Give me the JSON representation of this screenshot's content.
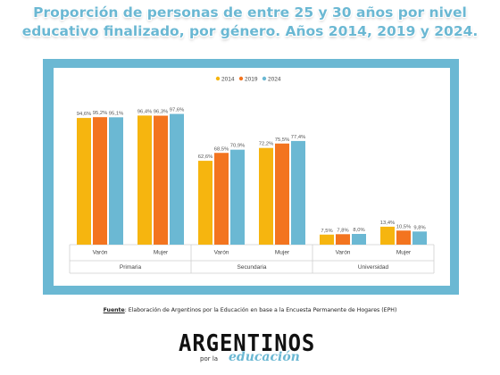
{
  "title_line1": "Proporción de personas de entre 25 y 30 años por nivel",
  "title_line2": "educativo finalizado, por género. Años 2014, 2019 y 2024.",
  "source": {
    "label": "Fuente",
    "text": ": Elaboración de Argentinos por la Educación en base a la Encuesta Permanente de Hogares (EPH)"
  },
  "logo": {
    "main": "ARGENTINOS",
    "por": "por la",
    "edu": "educación"
  },
  "colors": {
    "frame": "#6bb8d3",
    "s2014": "#f6b50f",
    "s2019": "#f3741f",
    "s2024": "#6bb8d3"
  },
  "chart_data": {
    "type": "bar",
    "groups": [
      {
        "name": "Primaria",
        "categories": [
          "Varón",
          "Mujer"
        ]
      },
      {
        "name": "Secundaria",
        "categories": [
          "Varón",
          "Mujer"
        ]
      },
      {
        "name": "Universidad",
        "categories": [
          "Varón",
          "Mujer"
        ]
      }
    ],
    "series": [
      {
        "name": "2014",
        "color": "#f6b50f",
        "values": [
          94.6,
          96.4,
          62.6,
          72.2,
          7.5,
          13.4
        ],
        "labels": [
          "94,6%",
          "96,4%",
          "62,6%",
          "72,2%",
          "7,5%",
          "13,4%"
        ]
      },
      {
        "name": "2019",
        "color": "#f3741f",
        "values": [
          95.2,
          96.3,
          68.5,
          75.5,
          7.8,
          10.5
        ],
        "labels": [
          "95,2%",
          "96,3%",
          "68,5%",
          "75,5%",
          "7,8%",
          "10,5%"
        ]
      },
      {
        "name": "2024",
        "color": "#6bb8d3",
        "values": [
          95.1,
          97.6,
          70.9,
          77.4,
          8.0,
          9.8
        ],
        "labels": [
          "95,1%",
          "97,6%",
          "70,9%",
          "77,4%",
          "8,0%",
          "9,8%"
        ]
      }
    ],
    "ylim": [
      0,
      100
    ],
    "legend": "top-center",
    "grid": false
  }
}
